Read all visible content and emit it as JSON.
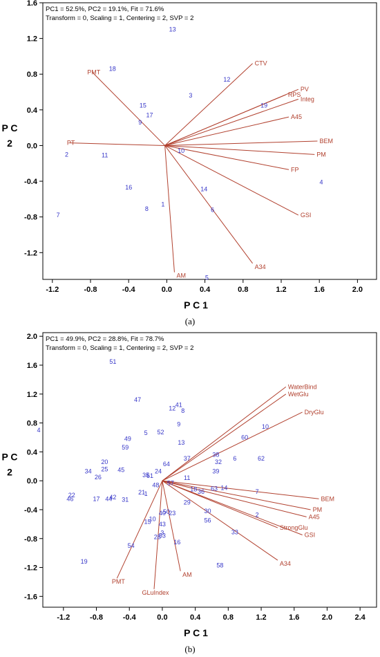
{
  "captions": {
    "a": "(a)",
    "b": "(b)"
  },
  "colors": {
    "vector": "#b1402e",
    "vector_label": "#b1402e",
    "point_label": "#3636c8",
    "axis": "#000000"
  },
  "chart_data": [
    {
      "id": "a",
      "type": "scatter",
      "subtype": "biplot",
      "header_line1": "PC1 = 52.5%, PC2 = 19.1%, Fit = 71.6%",
      "header_line2": "Transform = 0, Scaling = 1, Centering = 2, SVP = 2",
      "xlabel": "P C 1",
      "ylabel": "P C\n2",
      "xlim": [
        -1.3,
        2.2
      ],
      "ylim": [
        -1.5,
        1.6
      ],
      "xticks": [
        -1.2,
        -0.8,
        -0.4,
        0.0,
        0.4,
        0.8,
        1.2,
        1.6,
        2.0
      ],
      "xtick_labels": [
        "-1.2",
        "-0.8",
        "-0.4",
        "0.0",
        "0.4",
        "0.8",
        "1.2",
        "1.6",
        "2.0"
      ],
      "yticks": [
        1.6,
        1.2,
        0.8,
        0.4,
        0.0,
        -0.4,
        -0.8,
        -1.2
      ],
      "ytick_labels": [
        "1.6",
        "1.2",
        "0.8",
        "0.4",
        "0.0",
        "-0.4",
        "-0.8",
        "-1.2"
      ],
      "origin": [
        -0.02,
        0.0
      ],
      "vectors": [
        {
          "label": "PMT",
          "x": -0.78,
          "y": 0.82
        },
        {
          "label": "PT",
          "x": -1.02,
          "y": 0.03
        },
        {
          "label": "CTV",
          "x": 0.9,
          "y": 0.92
        },
        {
          "label": "RPS",
          "x": 1.25,
          "y": 0.57
        },
        {
          "label": "PV",
          "x": 1.38,
          "y": 0.63
        },
        {
          "label": "Integ",
          "x": 1.38,
          "y": 0.52
        },
        {
          "label": "A45",
          "x": 1.28,
          "y": 0.32
        },
        {
          "label": "BEM",
          "x": 1.58,
          "y": 0.05
        },
        {
          "label": "PM",
          "x": 1.55,
          "y": -0.1
        },
        {
          "label": "FP",
          "x": 1.28,
          "y": -0.27
        },
        {
          "label": "GSI",
          "x": 1.38,
          "y": -0.78
        },
        {
          "label": "A34",
          "x": 0.9,
          "y": -1.32
        },
        {
          "label": "AM",
          "x": 0.08,
          "y": -1.42
        }
      ],
      "points": [
        {
          "label": "13",
          "x": 0.06,
          "y": 1.3
        },
        {
          "label": "18",
          "x": -0.57,
          "y": 0.86
        },
        {
          "label": "12",
          "x": 0.63,
          "y": 0.74
        },
        {
          "label": "3",
          "x": 0.25,
          "y": 0.56
        },
        {
          "label": "15",
          "x": -0.25,
          "y": 0.45
        },
        {
          "label": "19",
          "x": 1.02,
          "y": 0.45
        },
        {
          "label": "17",
          "x": -0.18,
          "y": 0.34
        },
        {
          "label": "9",
          "x": -0.28,
          "y": 0.26
        },
        {
          "label": "2",
          "x": -1.05,
          "y": -0.1
        },
        {
          "label": "11",
          "x": -0.65,
          "y": -0.11
        },
        {
          "label": "10",
          "x": 0.15,
          "y": -0.06
        },
        {
          "label": "16",
          "x": -0.4,
          "y": -0.47
        },
        {
          "label": "14",
          "x": 0.39,
          "y": -0.49
        },
        {
          "label": "4",
          "x": 1.62,
          "y": -0.41
        },
        {
          "label": "1",
          "x": -0.04,
          "y": -0.66
        },
        {
          "label": "8",
          "x": -0.21,
          "y": -0.71
        },
        {
          "label": "6",
          "x": 0.48,
          "y": -0.72
        },
        {
          "label": "7",
          "x": -1.14,
          "y": -0.78
        },
        {
          "label": "5",
          "x": 0.42,
          "y": -1.48
        }
      ]
    },
    {
      "id": "b",
      "type": "scatter",
      "subtype": "biplot",
      "header_line1": "PC1 = 49.9%, PC2 = 28.8%, Fit = 78.7%",
      "header_line2": "Transform = 0, Scaling = 1, Centering = 2, SVP = 2",
      "xlabel": "P C 1",
      "ylabel": "P C\n2",
      "xlim": [
        -1.45,
        2.6
      ],
      "ylim": [
        -1.75,
        2.05
      ],
      "xticks": [
        -1.2,
        -0.8,
        -0.4,
        0.0,
        0.4,
        0.8,
        1.2,
        1.6,
        2.0,
        2.4
      ],
      "xtick_labels": [
        "-1.2",
        "-0.8",
        "-0.4",
        "0.0",
        "0.4",
        "0.8",
        "1.2",
        "1.6",
        "2.0",
        "2.4"
      ],
      "yticks": [
        2.0,
        1.6,
        1.2,
        0.8,
        0.4,
        0.0,
        -0.4,
        -0.8,
        -1.2,
        -1.6
      ],
      "ytick_labels": [
        "2.0",
        "1.6",
        "1.2",
        "0.8",
        "0.4",
        "0.0",
        "-0.4",
        "-0.8",
        "-1.2",
        "-1.6"
      ],
      "origin": [
        0.0,
        0.0
      ],
      "vectors": [
        {
          "label": "WaterBind",
          "x": 1.5,
          "y": 1.3
        },
        {
          "label": "WetGlu",
          "x": 1.5,
          "y": 1.2
        },
        {
          "label": "DryGlu",
          "x": 1.7,
          "y": 0.95
        },
        {
          "label": "BEM",
          "x": 1.9,
          "y": -0.25
        },
        {
          "label": "PM",
          "x": 1.8,
          "y": -0.4
        },
        {
          "label": "A45",
          "x": 1.75,
          "y": -0.5
        },
        {
          "label": "StrongGlu",
          "x": 1.4,
          "y": -0.65
        },
        {
          "label": "GSI",
          "x": 1.7,
          "y": -0.75
        },
        {
          "label": "A34",
          "x": 1.4,
          "y": -1.1
        },
        {
          "label": "AM",
          "x": 0.22,
          "y": -1.25
        },
        {
          "label": "GLuIndex",
          "x": -0.1,
          "y": -1.5
        },
        {
          "label": "PMT",
          "x": -0.55,
          "y": -1.35
        }
      ],
      "points": [
        {
          "label": "51",
          "x": -0.6,
          "y": 1.65
        },
        {
          "label": "47",
          "x": -0.3,
          "y": 1.12
        },
        {
          "label": "12",
          "x": 0.12,
          "y": 1.0
        },
        {
          "label": "41",
          "x": 0.2,
          "y": 1.05
        },
        {
          "label": "8",
          "x": 0.25,
          "y": 0.97
        },
        {
          "label": "10",
          "x": 1.25,
          "y": 0.75
        },
        {
          "label": "9",
          "x": 0.2,
          "y": 0.78
        },
        {
          "label": "4",
          "x": -1.5,
          "y": 0.7
        },
        {
          "label": "5",
          "x": -0.2,
          "y": 0.66
        },
        {
          "label": "52",
          "x": -0.02,
          "y": 0.67
        },
        {
          "label": "49",
          "x": -0.42,
          "y": 0.58
        },
        {
          "label": "13",
          "x": 0.23,
          "y": 0.53
        },
        {
          "label": "60",
          "x": 1.0,
          "y": 0.6
        },
        {
          "label": "59",
          "x": -0.45,
          "y": 0.46
        },
        {
          "label": "38",
          "x": 0.65,
          "y": 0.36
        },
        {
          "label": "6",
          "x": 0.88,
          "y": 0.31
        },
        {
          "label": "62",
          "x": 1.2,
          "y": 0.31
        },
        {
          "label": "37",
          "x": 0.3,
          "y": 0.31
        },
        {
          "label": "32",
          "x": 0.68,
          "y": 0.26
        },
        {
          "label": "20",
          "x": -0.7,
          "y": 0.26
        },
        {
          "label": "64",
          "x": 0.05,
          "y": 0.23
        },
        {
          "label": "25",
          "x": -0.7,
          "y": 0.16
        },
        {
          "label": "34",
          "x": -0.9,
          "y": 0.13
        },
        {
          "label": "45",
          "x": -0.5,
          "y": 0.15
        },
        {
          "label": "24",
          "x": -0.05,
          "y": 0.13
        },
        {
          "label": "39",
          "x": 0.65,
          "y": 0.13
        },
        {
          "label": "26",
          "x": -0.78,
          "y": 0.05
        },
        {
          "label": "35",
          "x": -0.2,
          "y": 0.08
        },
        {
          "label": "61",
          "x": -0.15,
          "y": 0.07
        },
        {
          "label": "11",
          "x": 0.3,
          "y": 0.04
        },
        {
          "label": "48",
          "x": -0.08,
          "y": -0.06
        },
        {
          "label": "57",
          "x": 0.1,
          "y": -0.03
        },
        {
          "label": "18",
          "x": 0.38,
          "y": -0.12
        },
        {
          "label": "36",
          "x": 0.47,
          "y": -0.15
        },
        {
          "label": "63",
          "x": 0.63,
          "y": -0.11
        },
        {
          "label": "14",
          "x": 0.75,
          "y": -0.1
        },
        {
          "label": "7",
          "x": 1.15,
          "y": -0.15
        },
        {
          "label": "22",
          "x": -1.1,
          "y": -0.2
        },
        {
          "label": "46",
          "x": -1.12,
          "y": -0.25
        },
        {
          "label": "17",
          "x": -0.8,
          "y": -0.25
        },
        {
          "label": "44",
          "x": -0.65,
          "y": -0.25
        },
        {
          "label": "42",
          "x": -0.6,
          "y": -0.23
        },
        {
          "label": "31",
          "x": -0.45,
          "y": -0.26
        },
        {
          "label": "21",
          "x": -0.25,
          "y": -0.16
        },
        {
          "label": "1",
          "x": -0.2,
          "y": -0.18
        },
        {
          "label": "29",
          "x": 0.3,
          "y": -0.3
        },
        {
          "label": "56",
          "x": 0.55,
          "y": -0.55
        },
        {
          "label": "30",
          "x": 0.55,
          "y": -0.42
        },
        {
          "label": "2",
          "x": 1.15,
          "y": -0.47
        },
        {
          "label": "33",
          "x": 0.88,
          "y": -0.71
        },
        {
          "label": "50",
          "x": 0.05,
          "y": -0.43
        },
        {
          "label": "40",
          "x": 0.0,
          "y": -0.45
        },
        {
          "label": "23",
          "x": 0.12,
          "y": -0.45
        },
        {
          "label": "15",
          "x": -0.18,
          "y": -0.57
        },
        {
          "label": "10",
          "x": -0.12,
          "y": -0.53
        },
        {
          "label": "43",
          "x": 0.0,
          "y": -0.6
        },
        {
          "label": "3",
          "x": 0.0,
          "y": -0.72
        },
        {
          "label": "28",
          "x": -0.06,
          "y": -0.78
        },
        {
          "label": "53",
          "x": 0.0,
          "y": -0.76
        },
        {
          "label": "16",
          "x": 0.18,
          "y": -0.85
        },
        {
          "label": "54",
          "x": -0.38,
          "y": -0.9
        },
        {
          "label": "19",
          "x": -0.95,
          "y": -1.12
        },
        {
          "label": "58",
          "x": 0.7,
          "y": -1.17
        }
      ]
    }
  ]
}
